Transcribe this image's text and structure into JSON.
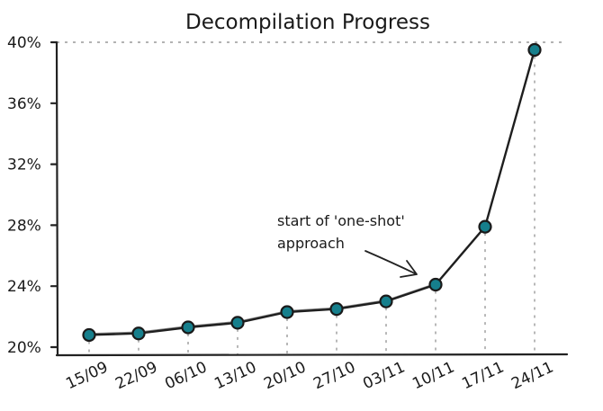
{
  "chart_data": {
    "type": "line",
    "title": "Decompilation Progress",
    "xlabel": "",
    "ylabel": "",
    "categories": [
      "15/09",
      "22/09",
      "06/10",
      "13/10",
      "20/10",
      "27/10",
      "03/11",
      "10/11",
      "17/11",
      "24/11"
    ],
    "series": [
      {
        "values": [
          20.8,
          20.9,
          21.3,
          21.6,
          22.3,
          22.5,
          23.0,
          24.1,
          27.9,
          39.5
        ]
      }
    ],
    "ylim": [
      20,
      40
    ],
    "yticks": [
      20,
      24,
      28,
      32,
      36,
      40
    ],
    "ytick_labels": [
      "20%",
      "24%",
      "28%",
      "32%",
      "36%",
      "40%"
    ],
    "grid": "vertical dotted drop lines from each point; dotted line at top",
    "marker_color": "#167f8c",
    "line_color": "#1f1f1f",
    "annotation": {
      "lines": [
        "start of 'one-shot'",
        "approach"
      ],
      "points_to_category": "10/11"
    }
  }
}
